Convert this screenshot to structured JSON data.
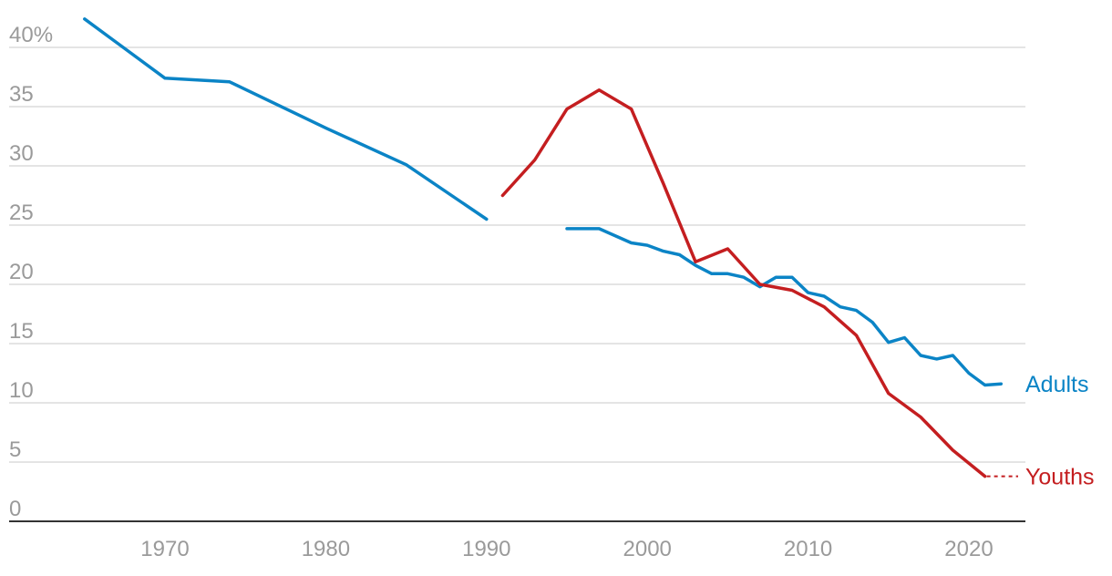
{
  "chart_data": {
    "type": "line",
    "title": "",
    "xlabel": "",
    "ylabel": "",
    "xlim": [
      1961,
      2024
    ],
    "ylim": [
      0,
      40
    ],
    "grid": true,
    "x_ticks": [
      {
        "value": 1970,
        "label": "1970"
      },
      {
        "value": 1980,
        "label": "1980"
      },
      {
        "value": 1990,
        "label": "1990"
      },
      {
        "value": 2000,
        "label": "2000"
      },
      {
        "value": 2010,
        "label": "2010"
      },
      {
        "value": 2020,
        "label": "2020"
      }
    ],
    "y_ticks": [
      {
        "value": 40,
        "label": "40%"
      },
      {
        "value": 35,
        "label": "35"
      },
      {
        "value": 30,
        "label": "30"
      },
      {
        "value": 25,
        "label": "25"
      },
      {
        "value": 20,
        "label": "20"
      },
      {
        "value": 15,
        "label": "15"
      },
      {
        "value": 10,
        "label": "10"
      },
      {
        "value": 5,
        "label": "5"
      },
      {
        "value": 0,
        "label": "0"
      }
    ],
    "series": [
      {
        "name": "Adults",
        "color": "#0b84c6",
        "segments": [
          [
            [
              1965,
              42.4
            ],
            [
              1970,
              37.4
            ],
            [
              1974,
              37.1
            ],
            [
              1980,
              33.2
            ],
            [
              1985,
              30.1
            ],
            [
              1990,
              25.5
            ]
          ],
          [
            [
              1995,
              24.7
            ],
            [
              1997,
              24.7
            ],
            [
              1999,
              23.5
            ],
            [
              2000,
              23.3
            ],
            [
              2001,
              22.8
            ],
            [
              2002,
              22.5
            ],
            [
              2003,
              21.6
            ],
            [
              2004,
              20.9
            ],
            [
              2005,
              20.9
            ],
            [
              2006,
              20.6
            ],
            [
              2007,
              19.8
            ],
            [
              2008,
              20.6
            ],
            [
              2009,
              20.6
            ],
            [
              2010,
              19.3
            ],
            [
              2011,
              19.0
            ],
            [
              2012,
              18.1
            ],
            [
              2013,
              17.8
            ],
            [
              2014,
              16.8
            ],
            [
              2015,
              15.1
            ],
            [
              2016,
              15.5
            ],
            [
              2017,
              14.0
            ],
            [
              2018,
              13.7
            ],
            [
              2019,
              14.0
            ],
            [
              2020,
              12.5
            ],
            [
              2021,
              11.5
            ],
            [
              2022,
              11.6
            ]
          ]
        ]
      },
      {
        "name": "Youths",
        "color": "#c41e20",
        "segments": [
          [
            [
              1991,
              27.5
            ],
            [
              1993,
              30.5
            ],
            [
              1995,
              34.8
            ],
            [
              1997,
              36.4
            ],
            [
              1999,
              34.8
            ],
            [
              2001,
              28.5
            ],
            [
              2003,
              21.9
            ],
            [
              2005,
              23.0
            ],
            [
              2007,
              20.0
            ],
            [
              2009,
              19.5
            ],
            [
              2011,
              18.1
            ],
            [
              2013,
              15.7
            ],
            [
              2015,
              10.8
            ],
            [
              2017,
              8.8
            ],
            [
              2019,
              6.0
            ],
            [
              2021,
              3.8
            ]
          ]
        ],
        "dotted_extension_to_label": true
      }
    ]
  }
}
